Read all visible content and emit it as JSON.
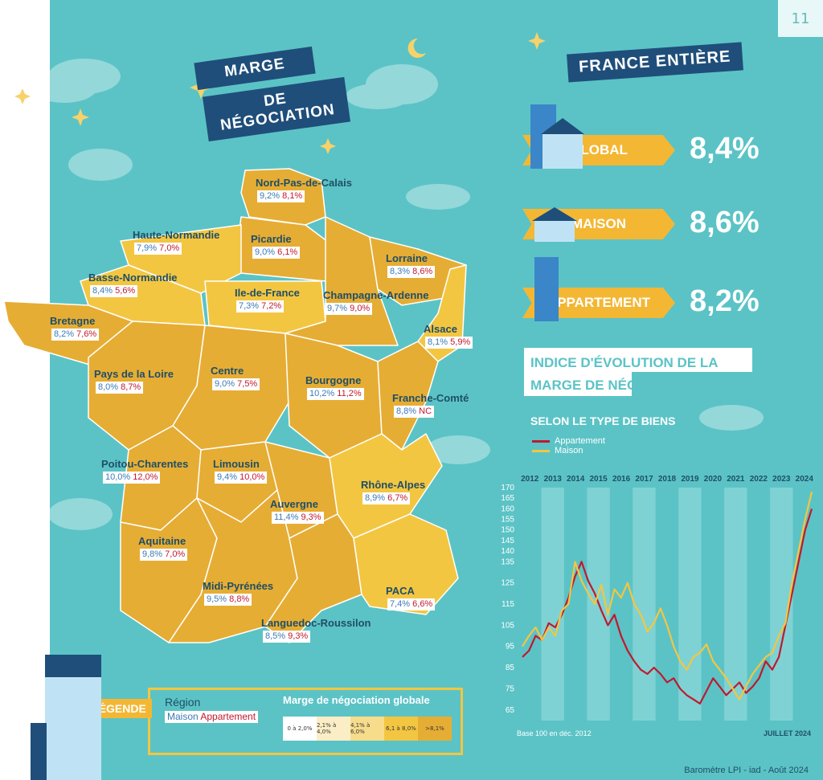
{
  "page_number": "11",
  "title_lines": [
    "MARGE",
    "DE NÉGOCIATION"
  ],
  "france_title": "FRANCE ENTIÈRE",
  "national": [
    {
      "label": "GLOBAL",
      "value": "8,4%"
    },
    {
      "label": "MAISON",
      "value": "8,6%"
    },
    {
      "label": "APPARTEMENT",
      "value": "8,2%"
    }
  ],
  "regions": [
    {
      "name": "Nord-Pas-de-Calais",
      "maison": "9,2%",
      "appartement": "8,1%"
    },
    {
      "name": "Haute-Normandie",
      "maison": "7,9%",
      "appartement": "7,0%"
    },
    {
      "name": "Picardie",
      "maison": "9,0%",
      "appartement": "6,1%"
    },
    {
      "name": "Lorraine",
      "maison": "8,3%",
      "appartement": "8,6%"
    },
    {
      "name": "Basse-Normandie",
      "maison": "8,4%",
      "appartement": "5,6%"
    },
    {
      "name": "Ile-de-France",
      "maison": "7,3%",
      "appartement": "7,2%"
    },
    {
      "name": "Champagne-Ardenne",
      "maison": "9,7%",
      "appartement": "9,0%"
    },
    {
      "name": "Bretagne",
      "maison": "8,2%",
      "appartement": "7,6%"
    },
    {
      "name": "Alsace",
      "maison": "8,1%",
      "appartement": "5,9%"
    },
    {
      "name": "Pays de la Loire",
      "maison": "8,0%",
      "appartement": "8,7%"
    },
    {
      "name": "Centre",
      "maison": "9,0%",
      "appartement": "7,5%"
    },
    {
      "name": "Bourgogne",
      "maison": "10,2%",
      "appartement": "11,2%"
    },
    {
      "name": "Franche-Comté",
      "maison": "8,8%",
      "appartement": "NC"
    },
    {
      "name": "Poitou-Charentes",
      "maison": "10,0%",
      "appartement": "12,0%"
    },
    {
      "name": "Limousin",
      "maison": "9,4%",
      "appartement": "10,0%"
    },
    {
      "name": "Rhône-Alpes",
      "maison": "8,9%",
      "appartement": "6,7%"
    },
    {
      "name": "Auvergne",
      "maison": "11,4%",
      "appartement": "9,3%"
    },
    {
      "name": "Aquitaine",
      "maison": "9,8%",
      "appartement": "7,0%"
    },
    {
      "name": "Midi-Pyrénées",
      "maison": "9,5%",
      "appartement": "8,8%"
    },
    {
      "name": "PACA",
      "maison": "7,4%",
      "appartement": "6,6%"
    },
    {
      "name": "Languedoc-Roussilon",
      "maison": "8,5%",
      "appartement": "9,3%"
    }
  ],
  "legend": {
    "tab": "LÉGENDE",
    "region": "Région",
    "maison": "Maison",
    "appartement": "Appartement",
    "scale_title": "Marge de négociation globale",
    "scale": [
      "0 à 2,0%",
      "2,1% à 4,0%",
      "4,1% à 6,0%",
      "6,1 à 8,0%",
      ">8,1%"
    ],
    "scale_colors": [
      "#ffffff",
      "#fbeec6",
      "#f7dc8c",
      "#f3c642",
      "#e6ad34"
    ]
  },
  "colors": {
    "teal": "#5bc3c6",
    "navy": "#1f4e7a",
    "region_dark": "#e6ad34",
    "region_light": "#f3c642",
    "appartement_line": "#c0192e",
    "maison_line": "#f3c642"
  },
  "footer": "Baromètre LPI - iad - Août 2024",
  "chart_data": {
    "type": "line",
    "title": "INDICE D'ÉVOLUTION DE LA MARGE DE NÉGOCIATION",
    "subtitle": "SELON LE TYPE DE BIENS",
    "note": "Base 100 en déc. 2012",
    "end_label": "JUILLET 2024",
    "years": [
      "2012",
      "2013",
      "2014",
      "2015",
      "2016",
      "2017",
      "2018",
      "2019",
      "2020",
      "2021",
      "2022",
      "2023",
      "2024"
    ],
    "yticks": [
      65,
      75,
      85,
      95,
      105,
      115,
      125,
      135,
      140,
      145,
      150,
      155,
      160,
      165,
      170
    ],
    "ylim": [
      60,
      170
    ],
    "series": [
      {
        "name": "Appartement",
        "color": "#c0192e",
        "values": [
          90,
          93,
          100,
          98,
          106,
          104,
          110,
          118,
          128,
          135,
          126,
          120,
          112,
          105,
          110,
          100,
          93,
          88,
          84,
          82,
          85,
          82,
          78,
          80,
          75,
          72,
          70,
          68,
          74,
          80,
          76,
          72,
          75,
          78,
          73,
          76,
          80,
          88,
          84,
          90,
          105,
          120,
          135,
          150,
          160
        ]
      },
      {
        "name": "Maison",
        "color": "#f3c642",
        "values": [
          95,
          100,
          104,
          98,
          104,
          100,
          112,
          115,
          135,
          126,
          120,
          115,
          124,
          110,
          122,
          118,
          125,
          115,
          110,
          102,
          106,
          113,
          105,
          95,
          88,
          84,
          90,
          92,
          96,
          88,
          84,
          80,
          75,
          70,
          76,
          82,
          86,
          90,
          92,
          100,
          106,
          125,
          140,
          155,
          168
        ]
      }
    ]
  }
}
